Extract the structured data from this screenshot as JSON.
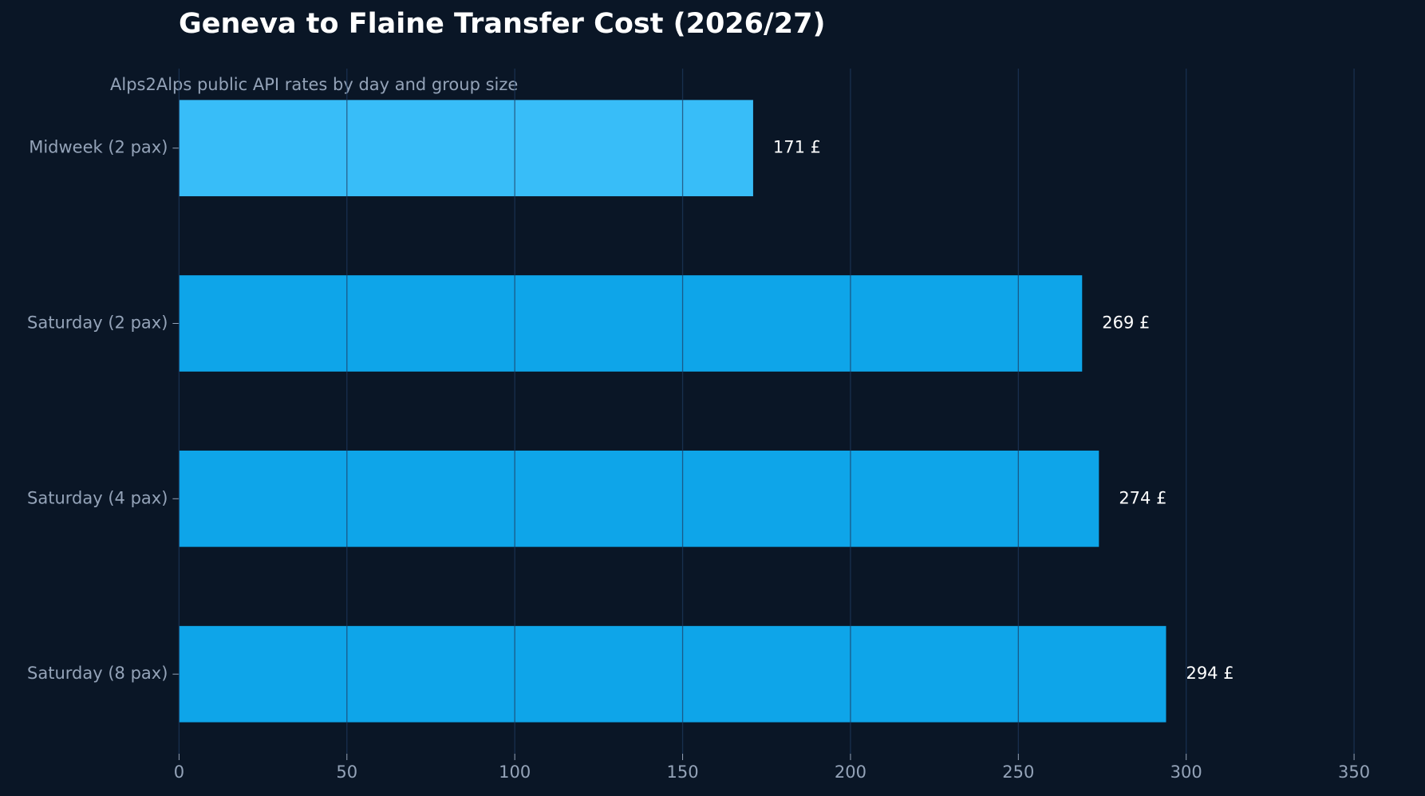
{
  "chart_data": {
    "type": "barh",
    "title": "Geneva to Flaine Transfer Cost (2026/27)",
    "subtitle": "Alps2Alps public API rates by day and group size",
    "categories": [
      "Midweek (2 pax)",
      "Saturday (2 pax)",
      "Saturday (4 pax)",
      "Saturday (8 pax)"
    ],
    "values": [
      171,
      269,
      274,
      294
    ],
    "value_labels": [
      "171 £",
      "269 £",
      "274 £",
      "294 £"
    ],
    "colors": [
      "#38bdf8",
      "#0ea5e9",
      "#0ea5e9",
      "#0ea5e9"
    ],
    "xlim": [
      0,
      350
    ],
    "xticks": [
      0,
      50,
      100,
      150,
      200,
      250,
      300,
      350
    ],
    "grid": true
  }
}
